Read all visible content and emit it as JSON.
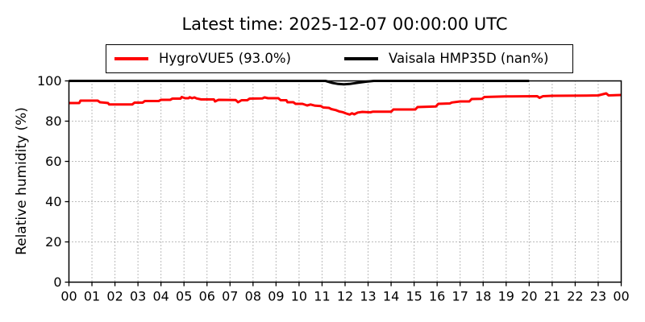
{
  "figure": {
    "title": "Latest time: 2025-12-07 00:00:00 UTC",
    "background": "#ffffff"
  },
  "legend": {
    "items": [
      {
        "id": "hygrovue5",
        "label": "HygroVUE5 (93.0%)",
        "color": "#ff0000"
      },
      {
        "id": "vaisala-hmp35d",
        "label": "Vaisala HMP35D (nan%)",
        "color": "#000000"
      }
    ]
  },
  "axes": {
    "ylabel": "Relative humidity (%)",
    "x_tick_labels": [
      "00",
      "01",
      "02",
      "03",
      "04",
      "05",
      "06",
      "07",
      "08",
      "09",
      "10",
      "11",
      "12",
      "13",
      "14",
      "15",
      "16",
      "17",
      "18",
      "19",
      "20",
      "21",
      "22",
      "23",
      "00"
    ],
    "y_tick_labels": [
      "0",
      "20",
      "40",
      "60",
      "80",
      "100"
    ],
    "grid_style": "dotted",
    "grid_color": "#777777"
  },
  "chart_data": {
    "type": "line",
    "title": "Latest time: 2025-12-07 00:00:00 UTC",
    "xlabel": "",
    "ylabel": "Relative humidity (%)",
    "xlim_hours": [
      0,
      24
    ],
    "ylim": [
      0,
      100
    ],
    "x_unit": "hour UTC",
    "legend_position": "upper center, outside axes",
    "grid": true,
    "series": [
      {
        "id": "hygrovue5",
        "name": "HygroVUE5 (93.0%)",
        "color": "#ff0000",
        "latest_value_pct": 93.0,
        "points": [
          [
            0.0,
            89.0
          ],
          [
            0.45,
            89.0
          ],
          [
            0.5,
            90.2
          ],
          [
            1.25,
            90.2
          ],
          [
            1.35,
            89.4
          ],
          [
            1.7,
            89.0
          ],
          [
            1.75,
            88.3
          ],
          [
            2.75,
            88.3
          ],
          [
            2.85,
            89.2
          ],
          [
            3.2,
            89.2
          ],
          [
            3.3,
            90.0
          ],
          [
            3.9,
            90.0
          ],
          [
            4.0,
            90.6
          ],
          [
            4.4,
            90.6
          ],
          [
            4.5,
            91.2
          ],
          [
            4.85,
            91.2
          ],
          [
            4.9,
            92.0
          ],
          [
            5.05,
            91.4
          ],
          [
            5.2,
            91.4
          ],
          [
            5.25,
            91.9
          ],
          [
            5.35,
            91.4
          ],
          [
            5.45,
            91.8
          ],
          [
            5.55,
            91.3
          ],
          [
            5.75,
            90.8
          ],
          [
            6.3,
            90.8
          ],
          [
            6.35,
            89.8
          ],
          [
            6.5,
            90.6
          ],
          [
            7.25,
            90.5
          ],
          [
            7.35,
            89.4
          ],
          [
            7.5,
            90.4
          ],
          [
            7.75,
            90.4
          ],
          [
            7.85,
            91.2
          ],
          [
            8.4,
            91.3
          ],
          [
            8.5,
            91.8
          ],
          [
            8.65,
            91.4
          ],
          [
            9.1,
            91.4
          ],
          [
            9.2,
            90.4
          ],
          [
            9.45,
            90.4
          ],
          [
            9.5,
            89.4
          ],
          [
            9.75,
            89.4
          ],
          [
            9.85,
            88.6
          ],
          [
            10.15,
            88.6
          ],
          [
            10.25,
            88.2
          ],
          [
            10.35,
            87.8
          ],
          [
            10.5,
            88.3
          ],
          [
            10.7,
            87.7
          ],
          [
            10.95,
            87.5
          ],
          [
            11.05,
            86.8
          ],
          [
            11.3,
            86.6
          ],
          [
            11.4,
            86.0
          ],
          [
            11.6,
            85.5
          ],
          [
            11.75,
            84.8
          ],
          [
            11.9,
            84.5
          ],
          [
            12.05,
            83.8
          ],
          [
            12.2,
            83.3
          ],
          [
            12.3,
            83.9
          ],
          [
            12.4,
            83.4
          ],
          [
            12.55,
            84.3
          ],
          [
            12.75,
            84.6
          ],
          [
            13.1,
            84.4
          ],
          [
            13.2,
            84.7
          ],
          [
            14.0,
            84.7
          ],
          [
            14.1,
            85.8
          ],
          [
            15.05,
            85.8
          ],
          [
            15.15,
            87.0
          ],
          [
            15.95,
            87.3
          ],
          [
            16.05,
            88.6
          ],
          [
            16.55,
            88.8
          ],
          [
            16.65,
            89.3
          ],
          [
            17.0,
            89.8
          ],
          [
            17.4,
            89.8
          ],
          [
            17.5,
            91.0
          ],
          [
            17.95,
            91.1
          ],
          [
            18.05,
            92.0
          ],
          [
            19.0,
            92.3
          ],
          [
            20.35,
            92.4
          ],
          [
            20.45,
            91.6
          ],
          [
            20.6,
            92.4
          ],
          [
            21.0,
            92.6
          ],
          [
            22.5,
            92.7
          ],
          [
            23.0,
            92.8
          ],
          [
            23.35,
            93.8
          ],
          [
            23.45,
            92.8
          ],
          [
            24.0,
            93.0
          ]
        ]
      },
      {
        "id": "vaisala-hmp35d",
        "name": "Vaisala HMP35D (nan%)",
        "color": "#000000",
        "latest_value_pct": null,
        "points": [
          [
            0.0,
            100
          ],
          [
            11.15,
            100
          ],
          [
            11.45,
            99.0
          ],
          [
            11.7,
            98.5
          ],
          [
            11.95,
            98.3
          ],
          [
            12.2,
            98.5
          ],
          [
            12.5,
            99.0
          ],
          [
            12.9,
            99.6
          ],
          [
            13.25,
            100
          ],
          [
            20.0,
            100
          ]
        ]
      }
    ]
  }
}
